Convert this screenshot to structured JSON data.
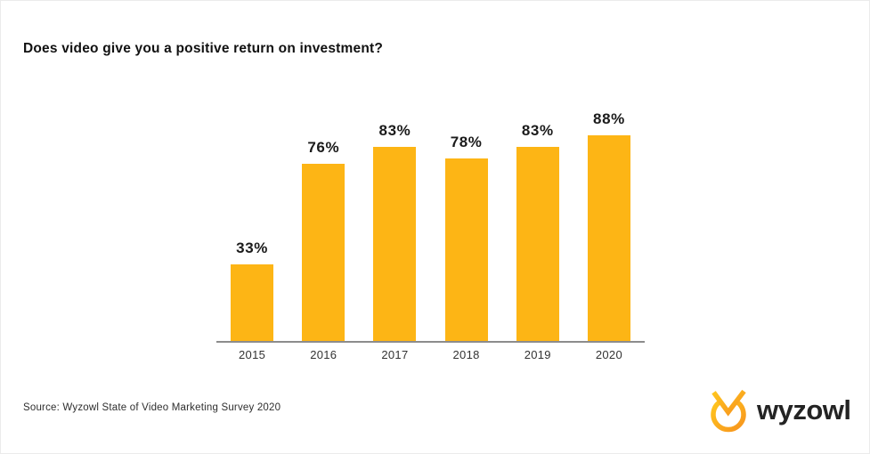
{
  "page": {
    "background": "#ffffff",
    "border_color": "#ebebeb",
    "title": "Does video give you a positive return on investment?",
    "source_note": "Source: Wyzowl State of Video Marketing Survey 2020"
  },
  "logo": {
    "name": "wyzowl",
    "wordmark": "wyzowl",
    "wordmark_color": "#242424",
    "mark_gradient_start": "#FFC61E",
    "mark_gradient_end": "#F7941E"
  },
  "chart_data": {
    "type": "bar",
    "title": "Does video give you a positive return on investment?",
    "categories": [
      "2015",
      "2016",
      "2017",
      "2018",
      "2019",
      "2020"
    ],
    "values": [
      33,
      76,
      83,
      78,
      83,
      88
    ],
    "value_labels": [
      "33%",
      "76%",
      "83%",
      "78%",
      "83%",
      "88%"
    ],
    "unit": "%",
    "ylim": [
      0,
      100
    ],
    "grid": false,
    "legend": false,
    "bar_color": "#FDB515",
    "axis_line_color": "#8c8c8c",
    "value_label_color": "#1b1b1b",
    "category_label_color": "#333333"
  }
}
